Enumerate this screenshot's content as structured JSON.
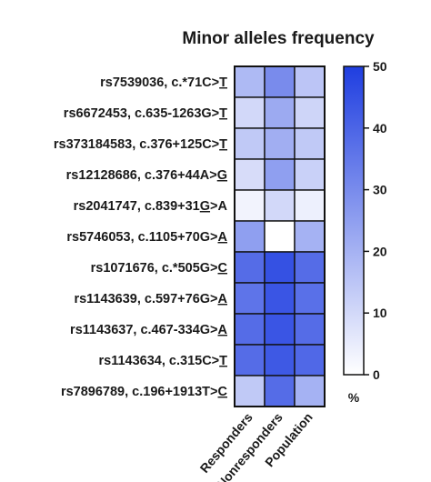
{
  "chart_data": {
    "type": "heatmap",
    "title": "Minor alleles frequency",
    "rows": [
      {
        "pre": "rs7539036, c.*71C>",
        "allele": "T",
        "post": ""
      },
      {
        "pre": "rs6672453, c.635-1263G>",
        "allele": "T",
        "post": ""
      },
      {
        "pre": "rs373184583, c.376+125C>",
        "allele": "T",
        "post": ""
      },
      {
        "pre": "rs12128686, c.376+44A>",
        "allele": "G",
        "post": ""
      },
      {
        "pre": "rs2041747, c.839+31",
        "allele": "G",
        "post": ">A"
      },
      {
        "pre": "rs5746053, c.1105+70G>",
        "allele": "A",
        "post": ""
      },
      {
        "pre": "rs1071676, c.*505G>",
        "allele": "C",
        "post": ""
      },
      {
        "pre": "rs1143639, c.597+76G>",
        "allele": "A",
        "post": ""
      },
      {
        "pre": "rs1143637, c.467-334G>",
        "allele": "A",
        "post": ""
      },
      {
        "pre": "rs1143634, c.315C>",
        "allele": "T",
        "post": ""
      },
      {
        "pre": "rs7896789, c.196+1913T>",
        "allele": "C",
        "post": ""
      }
    ],
    "columns": [
      "Responders",
      "Nonresponders",
      "Population"
    ],
    "values": [
      [
        18,
        30,
        15
      ],
      [
        10,
        22,
        11
      ],
      [
        14,
        21,
        14
      ],
      [
        9,
        25,
        12
      ],
      [
        3,
        10,
        4
      ],
      [
        25,
        0,
        20
      ],
      [
        38,
        45,
        38
      ],
      [
        36,
        44,
        37
      ],
      [
        38,
        44,
        38
      ],
      [
        38,
        43,
        39
      ],
      [
        14,
        38,
        20
      ]
    ],
    "colorbar": {
      "range": [
        0,
        50
      ],
      "ticks": [
        "0",
        "10",
        "20",
        "30",
        "40",
        "50"
      ],
      "unit": "%",
      "color_low": "#ffffff",
      "color_high": "#1f3ee0"
    }
  }
}
